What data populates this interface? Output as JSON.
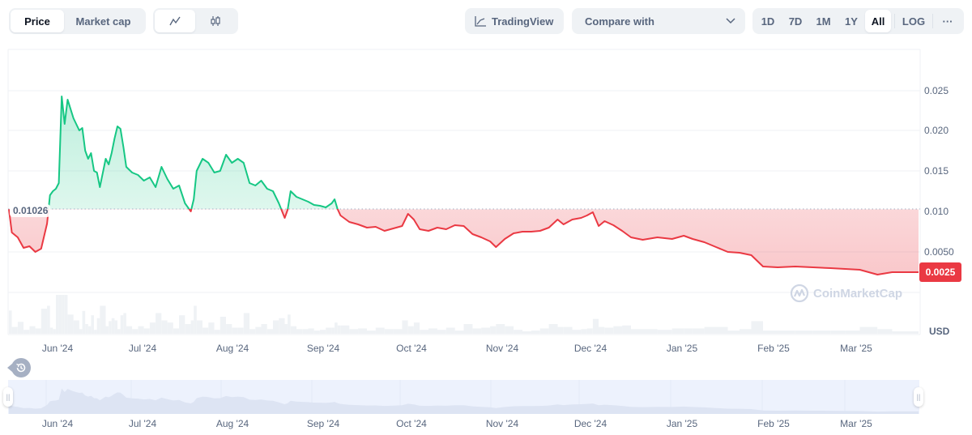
{
  "toolbar": {
    "metric_tabs": [
      {
        "label": "Price",
        "active": true
      },
      {
        "label": "Market cap",
        "active": false
      }
    ],
    "chart_type_tabs": [
      {
        "icon": "line-chart-icon",
        "active": true
      },
      {
        "icon": "candlestick-icon",
        "active": false
      }
    ],
    "tradingview_label": "TradingView",
    "compare_placeholder": "Compare with",
    "ranges": [
      {
        "label": "1D",
        "active": false
      },
      {
        "label": "7D",
        "active": false
      },
      {
        "label": "1M",
        "active": false
      },
      {
        "label": "1Y",
        "active": false
      },
      {
        "label": "All",
        "active": true
      }
    ],
    "log_label": "LOG",
    "more_label": "···"
  },
  "chart": {
    "baseline_label": "0.01026",
    "current_price_label": "0.0025",
    "currency_label": "USD",
    "watermark": "CoinMarketCap",
    "colors": {
      "up": "#16c784",
      "down": "#ea3943",
      "grid": "#eff2f5",
      "axis_text": "#58667e",
      "navigator_bg": "#edf2fd",
      "navigator_fill": "#dde4f3",
      "volume": "#eff2f5"
    }
  },
  "chart_data": {
    "type": "line",
    "title": "",
    "xlabel": "",
    "ylabel": "USD",
    "baseline": 0.01026,
    "current": 0.0025,
    "ylim": [
      0,
      0.029
    ],
    "y_ticks": [
      "0.025",
      "0.020",
      "0.015",
      "0.010",
      "0.0050"
    ],
    "x_ticks": [
      "Jun '24",
      "Jul '24",
      "Aug '24",
      "Sep '24",
      "Oct '24",
      "Nov '24",
      "Dec '24",
      "Jan '25",
      "Feb '25",
      "Mar '25"
    ],
    "grid": true,
    "legend": "none",
    "series": [
      {
        "name": "Price",
        "points": [
          [
            "2024-05-20",
            0.01026
          ],
          [
            "2024-05-21",
            0.0074
          ],
          [
            "2024-05-23",
            0.0068
          ],
          [
            "2024-05-25",
            0.0055
          ],
          [
            "2024-05-27",
            0.0057
          ],
          [
            "2024-05-29",
            0.005
          ],
          [
            "2024-05-31",
            0.0054
          ],
          [
            "2024-06-02",
            0.0085
          ],
          [
            "2024-06-03",
            0.012
          ],
          [
            "2024-06-04",
            0.0125
          ],
          [
            "2024-06-05",
            0.0128
          ],
          [
            "2024-06-06",
            0.0135
          ],
          [
            "2024-06-07",
            0.0242
          ],
          [
            "2024-06-08",
            0.0208
          ],
          [
            "2024-06-09",
            0.0238
          ],
          [
            "2024-06-11",
            0.0215
          ],
          [
            "2024-06-13",
            0.02
          ],
          [
            "2024-06-14",
            0.0203
          ],
          [
            "2024-06-15",
            0.0175
          ],
          [
            "2024-06-16",
            0.0165
          ],
          [
            "2024-06-17",
            0.0172
          ],
          [
            "2024-06-18",
            0.015
          ],
          [
            "2024-06-19",
            0.0148
          ],
          [
            "2024-06-20",
            0.013
          ],
          [
            "2024-06-22",
            0.0165
          ],
          [
            "2024-06-23",
            0.0158
          ],
          [
            "2024-06-24",
            0.0172
          ],
          [
            "2024-06-25",
            0.019
          ],
          [
            "2024-06-26",
            0.0205
          ],
          [
            "2024-06-27",
            0.0202
          ],
          [
            "2024-06-28",
            0.018
          ],
          [
            "2024-06-29",
            0.0155
          ],
          [
            "2024-07-01",
            0.0148
          ],
          [
            "2024-07-03",
            0.0145
          ],
          [
            "2024-07-05",
            0.0138
          ],
          [
            "2024-07-07",
            0.0142
          ],
          [
            "2024-07-09",
            0.013
          ],
          [
            "2024-07-11",
            0.0155
          ],
          [
            "2024-07-13",
            0.014
          ],
          [
            "2024-07-15",
            0.0128
          ],
          [
            "2024-07-17",
            0.0132
          ],
          [
            "2024-07-19",
            0.011
          ],
          [
            "2024-07-21",
            0.01
          ],
          [
            "2024-07-22",
            0.0115
          ],
          [
            "2024-07-23",
            0.015
          ],
          [
            "2024-07-25",
            0.0165
          ],
          [
            "2024-07-27",
            0.016
          ],
          [
            "2024-07-29",
            0.0148
          ],
          [
            "2024-07-31",
            0.015
          ],
          [
            "2024-08-02",
            0.017
          ],
          [
            "2024-08-04",
            0.016
          ],
          [
            "2024-08-06",
            0.0165
          ],
          [
            "2024-08-08",
            0.016
          ],
          [
            "2024-08-10",
            0.0135
          ],
          [
            "2024-08-12",
            0.0132
          ],
          [
            "2024-08-14",
            0.0138
          ],
          [
            "2024-08-16",
            0.0128
          ],
          [
            "2024-08-18",
            0.0125
          ],
          [
            "2024-08-20",
            0.011
          ],
          [
            "2024-08-22",
            0.0092
          ],
          [
            "2024-08-23",
            0.0102
          ],
          [
            "2024-08-24",
            0.0125
          ],
          [
            "2024-08-26",
            0.0118
          ],
          [
            "2024-08-28",
            0.0115
          ],
          [
            "2024-08-30",
            0.0112
          ],
          [
            "2024-09-01",
            0.0108
          ],
          [
            "2024-09-03",
            0.0107
          ],
          [
            "2024-09-05",
            0.0105
          ],
          [
            "2024-09-07",
            0.011
          ],
          [
            "2024-09-08",
            0.0115
          ],
          [
            "2024-09-09",
            0.0103
          ],
          [
            "2024-09-10",
            0.0095
          ],
          [
            "2024-09-13",
            0.0087
          ],
          [
            "2024-09-16",
            0.0084
          ],
          [
            "2024-09-19",
            0.008
          ],
          [
            "2024-09-22",
            0.0081
          ],
          [
            "2024-09-25",
            0.0076
          ],
          [
            "2024-09-28",
            0.0079
          ],
          [
            "2024-10-01",
            0.0082
          ],
          [
            "2024-10-03",
            0.0097
          ],
          [
            "2024-10-05",
            0.009
          ],
          [
            "2024-10-07",
            0.0078
          ],
          [
            "2024-10-10",
            0.0076
          ],
          [
            "2024-10-13",
            0.008
          ],
          [
            "2024-10-16",
            0.0078
          ],
          [
            "2024-10-19",
            0.0083
          ],
          [
            "2024-10-22",
            0.0082
          ],
          [
            "2024-10-25",
            0.0072
          ],
          [
            "2024-10-28",
            0.0068
          ],
          [
            "2024-10-31",
            0.0063
          ],
          [
            "2024-11-02",
            0.0056
          ],
          [
            "2024-11-05",
            0.0066
          ],
          [
            "2024-11-08",
            0.0073
          ],
          [
            "2024-11-11",
            0.0075
          ],
          [
            "2024-11-14",
            0.0075
          ],
          [
            "2024-11-17",
            0.0076
          ],
          [
            "2024-11-20",
            0.008
          ],
          [
            "2024-11-23",
            0.009
          ],
          [
            "2024-11-25",
            0.0084
          ],
          [
            "2024-11-28",
            0.009
          ],
          [
            "2024-12-01",
            0.0092
          ],
          [
            "2024-12-03",
            0.0095
          ],
          [
            "2024-12-05",
            0.0099
          ],
          [
            "2024-12-07",
            0.0082
          ],
          [
            "2024-12-09",
            0.0088
          ],
          [
            "2024-12-12",
            0.0083
          ],
          [
            "2024-12-15",
            0.0076
          ],
          [
            "2024-12-18",
            0.0068
          ],
          [
            "2024-12-22",
            0.0065
          ],
          [
            "2024-12-27",
            0.0068
          ],
          [
            "2025-01-01",
            0.0066
          ],
          [
            "2025-01-05",
            0.007
          ],
          [
            "2025-01-08",
            0.0066
          ],
          [
            "2025-01-12",
            0.0062
          ],
          [
            "2025-01-16",
            0.0056
          ],
          [
            "2025-01-20",
            0.005
          ],
          [
            "2025-01-24",
            0.0049
          ],
          [
            "2025-01-28",
            0.0046
          ],
          [
            "2025-02-01",
            0.0032
          ],
          [
            "2025-02-06",
            0.0031
          ],
          [
            "2025-02-12",
            0.0032
          ],
          [
            "2025-02-18",
            0.0031
          ],
          [
            "2025-02-24",
            0.003
          ],
          [
            "2025-03-01",
            0.0029
          ],
          [
            "2025-03-06",
            0.0028
          ],
          [
            "2025-03-12",
            0.0022
          ],
          [
            "2025-03-17",
            0.0025
          ],
          [
            "2025-03-22",
            0.0025
          ],
          [
            "2025-03-26",
            0.0025
          ]
        ]
      }
    ]
  },
  "navigator": {
    "x_ticks": [
      "Jun '24",
      "Jul '24",
      "Aug '24",
      "Sep '24",
      "Oct '24",
      "Nov '24",
      "Dec '24",
      "Jan '25",
      "Feb '25",
      "Mar '25"
    ]
  }
}
